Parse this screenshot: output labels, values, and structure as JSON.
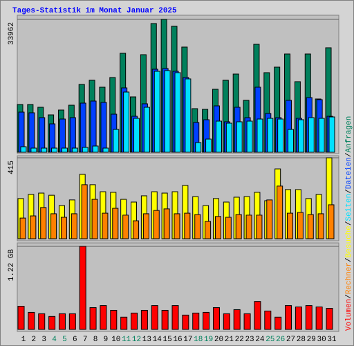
{
  "title": "Tages-Statistik im Monat Januar 2025",
  "legend_separator": "/",
  "chart_data": [
    {
      "type": "bar",
      "ylim": [
        0,
        33962
      ],
      "yticks": [
        33962
      ],
      "series": [
        {
          "name": "Anfragen",
          "color": "#00805c",
          "values": [
            12205,
            12205,
            11498,
            9552,
            10790,
            12028,
            17335,
            18396,
            16627,
            19104,
            25295,
            14151,
            24941,
            32901,
            33962,
            32193,
            26887,
            11144,
            10967,
            16097,
            18396,
            19988,
            13266,
            27594,
            20342,
            21757,
            25118,
            18042,
            25118,
            13620,
            26710
          ]
        },
        {
          "name": "Dateien",
          "color": "#0040ff",
          "values": [
            10259,
            10082,
            8844,
            7252,
            8490,
            8844,
            12559,
            13089,
            12736,
            9729,
            16450,
            9198,
            12382,
            21226,
            21403,
            20696,
            19104,
            7606,
            8314,
            11851,
            7783,
            11498,
            8844,
            16627,
            9906,
            8844,
            13266,
            8667,
            13974,
            13443,
            9198
          ]
        },
        {
          "name": "Seiten",
          "color": "#00e0ff",
          "values": [
            1415,
            1061,
            1061,
            1061,
            1061,
            1061,
            1238,
            1592,
            1061,
            5837,
            15389,
            8667,
            11498,
            20696,
            20872,
            20342,
            18750,
            2476,
            3361,
            7960,
            7429,
            7783,
            7960,
            8490,
            8667,
            8490,
            5837,
            8314,
            8844,
            8667,
            9021
          ]
        }
      ]
    },
    {
      "type": "bar",
      "ylim": [
        0,
        415
      ],
      "yticks": [
        415
      ],
      "series": [
        {
          "name": "Besuche",
          "color": "#ffff00",
          "values": [
            206,
            227,
            234,
            223,
            170,
            199,
            330,
            277,
            241,
            238,
            202,
            188,
            220,
            241,
            234,
            241,
            273,
            216,
            170,
            206,
            188,
            213,
            216,
            238,
            195,
            358,
            252,
            252,
            206,
            227,
            415
          ]
        },
        {
          "name": "Rechner",
          "color": "#ff8000",
          "values": [
            106,
            117,
            160,
            128,
            110,
            128,
            277,
            202,
            131,
            156,
            121,
            92,
            128,
            145,
            153,
            128,
            131,
            124,
            89,
            114,
            110,
            124,
            121,
            121,
            199,
            270,
            131,
            135,
            124,
            128,
            174
          ]
        }
      ]
    },
    {
      "type": "bar",
      "ylim": [
        0,
        1.22
      ],
      "yticks": [
        {
          "value": 1.22,
          "label": "1.22 GB"
        }
      ],
      "categories": [
        "1",
        "2",
        "3",
        "4",
        "5",
        "6",
        "7",
        "8",
        "9",
        "10",
        "11",
        "12",
        "13",
        "14",
        "15",
        "16",
        "17",
        "18",
        "19",
        "20",
        "21",
        "22",
        "23",
        "24",
        "25",
        "26",
        "27",
        "28",
        "29",
        "30",
        "31"
      ],
      "highlight_indices": [
        3,
        4,
        10,
        11,
        17,
        18,
        24,
        25
      ],
      "highlight_color": "#00805c",
      "series": [
        {
          "name": "Volumen",
          "color": "#ff0000",
          "values": [
            0.34,
            0.25,
            0.23,
            0.19,
            0.23,
            0.23,
            1.22,
            0.32,
            0.35,
            0.28,
            0.18,
            0.24,
            0.28,
            0.35,
            0.28,
            0.35,
            0.21,
            0.24,
            0.25,
            0.32,
            0.23,
            0.29,
            0.23,
            0.41,
            0.27,
            0.18,
            0.35,
            0.33,
            0.35,
            0.33,
            0.31
          ]
        }
      ]
    }
  ]
}
